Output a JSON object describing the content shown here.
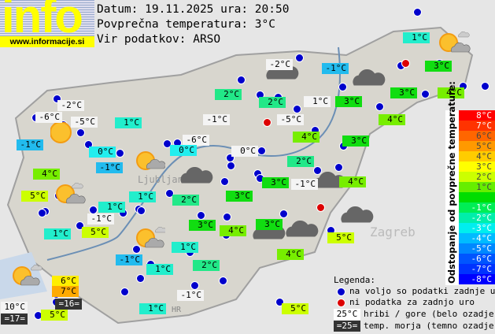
{
  "header": {
    "logo_text": "info",
    "logo_url": "www.informacije.si",
    "date_line": "Datum: 19.11.2025 ura: 20:50",
    "avg_line": "Povprečna temperatura: 3°C",
    "source_line": "Vir podatkov: ARSO"
  },
  "stations": [
    {
      "temp": "1°C",
      "color": "#22eecc"
    },
    {
      "temp": "3°C",
      "color": "#11dd11"
    },
    {
      "temp": "-2°C",
      "color": "#f4f4f4"
    },
    {
      "temp": "-1°C",
      "color": "#22bbee"
    },
    {
      "temp": "2°C",
      "color": "#22e888"
    },
    {
      "temp": "2°C",
      "color": "#22e888"
    },
    {
      "temp": "1°C",
      "color": "#f4f4f4"
    },
    {
      "temp": "3°C",
      "color": "#11dd11"
    },
    {
      "temp": "3°C",
      "color": "#11dd11"
    },
    {
      "temp": "4°C",
      "color": "#77ee00"
    },
    {
      "temp": "-1°C",
      "color": "#f4f4f4"
    },
    {
      "temp": "-5°C",
      "color": "#f4f4f4"
    },
    {
      "temp": "4°C",
      "color": "#77ee00"
    },
    {
      "temp": "4°C",
      "color": "#77ee00"
    },
    {
      "temp": "3°C",
      "color": "#11dd11"
    },
    {
      "temp": "-2°C",
      "color": "#f4f4f4"
    },
    {
      "temp": "-6°C",
      "color": "#f4f4f4"
    },
    {
      "temp": "-5°C",
      "color": "#f4f4f4"
    },
    {
      "temp": "1°C",
      "color": "#22eecc"
    },
    {
      "temp": "-6°C",
      "color": "#f4f4f4"
    },
    {
      "temp": "-1°C",
      "color": "#22bbee"
    },
    {
      "temp": "0°C",
      "color": "#22eeee"
    },
    {
      "temp": "0°C",
      "color": "#22eeee"
    },
    {
      "temp": "0°C",
      "color": "#f4f4f4"
    },
    {
      "temp": "-1°C",
      "color": "#22bbee"
    },
    {
      "temp": "2°C",
      "color": "#22e888"
    },
    {
      "temp": "4°C",
      "color": "#77ee00"
    },
    {
      "temp": "3°C",
      "color": "#11dd11"
    },
    {
      "temp": "-1°C",
      "color": "#f4f4f4"
    },
    {
      "temp": "4°C",
      "color": "#77ee00"
    },
    {
      "temp": "5°C",
      "color": "#ccff00"
    },
    {
      "temp": "1°C",
      "color": "#22eecc"
    },
    {
      "temp": "2°C",
      "color": "#22e888"
    },
    {
      "temp": "3°C",
      "color": "#11dd11"
    },
    {
      "temp": "1°C",
      "color": "#22eecc"
    },
    {
      "temp": "-1°C",
      "color": "#f4f4f4"
    },
    {
      "temp": "3°C",
      "color": "#11dd11"
    },
    {
      "temp": "4°C",
      "color": "#77ee00"
    },
    {
      "temp": "3°C",
      "color": "#11dd11"
    },
    {
      "temp": "1°C",
      "color": "#22eecc"
    },
    {
      "temp": "5°C",
      "color": "#ccff00"
    },
    {
      "temp": "5°C",
      "color": "#ccff00"
    },
    {
      "temp": "1°C",
      "color": "#22eecc"
    },
    {
      "temp": "-1°C",
      "color": "#22bbee"
    },
    {
      "temp": "4°C",
      "color": "#77ee00"
    },
    {
      "temp": "1°C",
      "color": "#22eecc"
    },
    {
      "temp": "2°C",
      "color": "#22e888"
    },
    {
      "temp": "6°C",
      "color": "#ffee00"
    },
    {
      "temp": "7°C",
      "color": "#ffaa00"
    },
    {
      "temp": "=16=",
      "color": "#333333"
    },
    {
      "temp": "10°C",
      "color": "#f4f4f4"
    },
    {
      "temp": "5°C",
      "color": "#ccff00"
    },
    {
      "temp": "=17=",
      "color": "#333333"
    },
    {
      "temp": "-1°C",
      "color": "#f4f4f4"
    },
    {
      "temp": "1°C",
      "color": "#22eecc"
    },
    {
      "temp": "5°C",
      "color": "#ccff00"
    }
  ],
  "map_labels": {
    "ljubljana": "Ljubljana",
    "zagreb": "Zagreb",
    "hr": "HR"
  },
  "scale": {
    "title": "Odstopanje od povprečne temperature:",
    "rows": [
      {
        "label": "8°C",
        "color": "#ff0000"
      },
      {
        "label": "7°C",
        "color": "#ff3300"
      },
      {
        "label": "6°C",
        "color": "#ff6600"
      },
      {
        "label": "5°C",
        "color": "#ff9900"
      },
      {
        "label": "4°C",
        "color": "#ffcc00"
      },
      {
        "label": "3°C",
        "color": "#ffff00"
      },
      {
        "label": "2°C",
        "color": "#ccff00"
      },
      {
        "label": "1°C",
        "color": "#66ee00"
      },
      {
        "label": "",
        "color": "#00dd00"
      },
      {
        "label": "-1°C",
        "color": "#00ee55"
      },
      {
        "label": "-2°C",
        "color": "#00eeaa"
      },
      {
        "label": "-3°C",
        "color": "#00eeee"
      },
      {
        "label": "-4°C",
        "color": "#00bbff"
      },
      {
        "label": "-5°C",
        "color": "#0088ff"
      },
      {
        "label": "-6°C",
        "color": "#0055ff"
      },
      {
        "label": "-7°C",
        "color": "#0033ff"
      },
      {
        "label": "-8°C",
        "color": "#0000ff"
      }
    ]
  },
  "legend": {
    "title": "Legenda:",
    "blue_dot": "na voljo so podatki zadnje ure",
    "red_dot": "ni podatka za zadnjo uro",
    "mountain_sample": "25°C",
    "mountain_text": "hribi / gore (belo ozadje)",
    "sea_sample": "=25=",
    "sea_text": "temp. morja (temno ozadje)"
  }
}
